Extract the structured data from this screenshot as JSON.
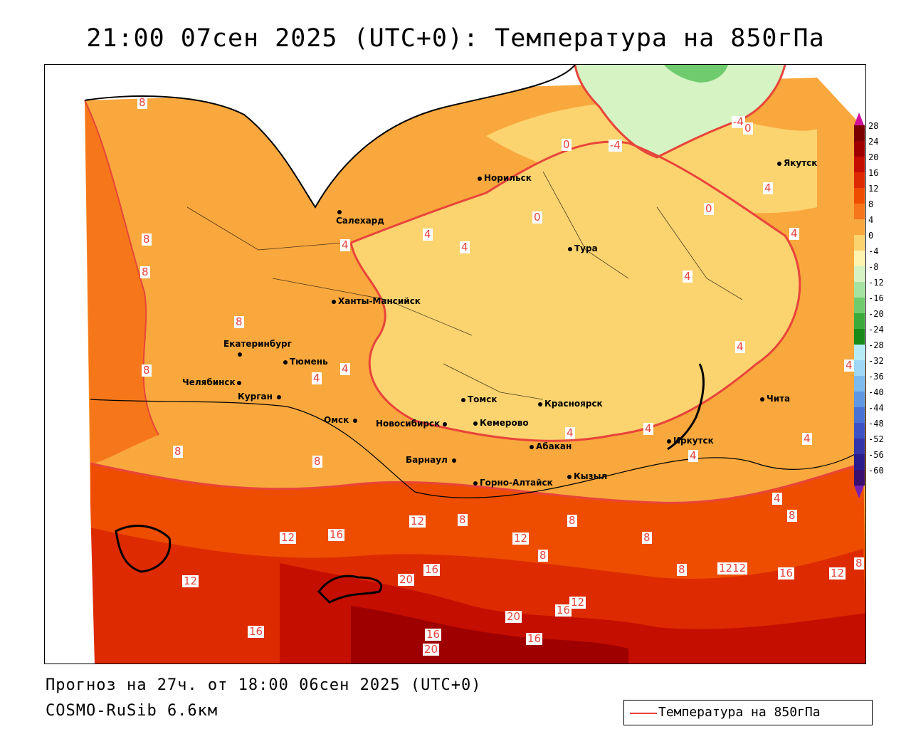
{
  "title": "21:00 07сен 2025 (UTC+0): Температура на 850гПа",
  "footer": {
    "forecast": "Прогноз на 27ч. от 18:00 06сен 2025 (UTC+0)",
    "model": "COSMO-RuSib 6.6км"
  },
  "legend": {
    "label": "Температура на 850гПа",
    "line_color": "#e8443a"
  },
  "colorbar": {
    "ticks": [
      "28",
      "24",
      "20",
      "16",
      "12",
      "8",
      "4",
      "0",
      "-4",
      "-8",
      "-12",
      "-16",
      "-20",
      "-24",
      "-28",
      "-32",
      "-36",
      "-40",
      "-44",
      "-48",
      "-52",
      "-56",
      "-60"
    ],
    "colors": [
      "#7a0000",
      "#9e0000",
      "#c40e00",
      "#dd2a00",
      "#ee4d00",
      "#f6771a",
      "#f9a83e",
      "#fbd36f",
      "#fff3b0",
      "#d6f3c4",
      "#a4e3a0",
      "#6fcb6e",
      "#3aab3a",
      "#188a18",
      "#b8ecf5",
      "#9ed6f5",
      "#7cbbee",
      "#5f97e2",
      "#4a72d5",
      "#3d52c5",
      "#3234a8",
      "#2a1c8c",
      "#3a0f6e"
    ],
    "arrow_top_color": "#d0109a",
    "arrow_bottom_color": "#7a20b0"
  },
  "cities": [
    {
      "name": "Норильск"
    },
    {
      "name": "Якутск"
    },
    {
      "name": "Салехард"
    },
    {
      "name": "Тура"
    },
    {
      "name": "Ханты-Мансийск"
    },
    {
      "name": "Екатеринбург"
    },
    {
      "name": "Тюмень"
    },
    {
      "name": "Челябинск"
    },
    {
      "name": "Курган"
    },
    {
      "name": "Омск"
    },
    {
      "name": "Новосибирск"
    },
    {
      "name": "Томск"
    },
    {
      "name": "Красноярск"
    },
    {
      "name": "Кемерово"
    },
    {
      "name": "Абакан"
    },
    {
      "name": "Барнаул"
    },
    {
      "name": "Горно-Алтайск"
    },
    {
      "name": "Кызыл"
    },
    {
      "name": "Иркутск"
    },
    {
      "name": "Чита"
    }
  ],
  "contour_labels": [
    "8",
    "8",
    "8",
    "8",
    "8",
    "8",
    "8",
    "-4",
    "-4",
    "0",
    "0",
    "0",
    "0",
    "4",
    "4",
    "4",
    "4",
    "4",
    "4",
    "4",
    "4",
    "4",
    "4",
    "4",
    "4",
    "4",
    "4",
    "4",
    "8",
    "8",
    "8",
    "8",
    "8",
    "8",
    "8",
    "12",
    "12",
    "12",
    "12",
    "12",
    "12",
    "12",
    "16",
    "16",
    "16",
    "16",
    "16",
    "16",
    "16",
    "20",
    "20",
    "20",
    "12"
  ]
}
